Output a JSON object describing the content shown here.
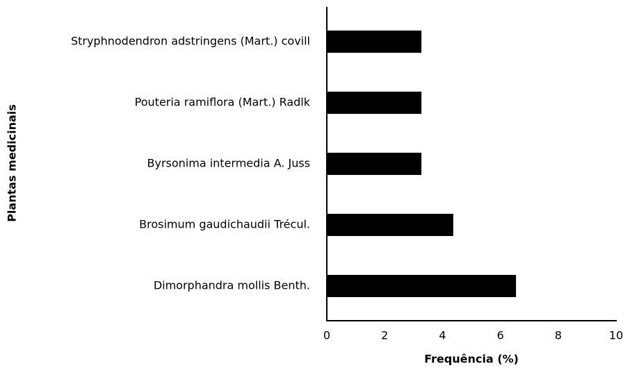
{
  "chart_data": {
    "type": "bar",
    "orientation": "horizontal",
    "categories": [
      "Stryphnodendron adstringens (Mart.) covill",
      "Pouteria ramiflora (Mart.) Radlk",
      "Byrsonima intermedia A. Juss",
      "Brosimum gaudichaudii Trécul.",
      "Dimorphandra mollis Benth."
    ],
    "values": [
      3.27,
      3.27,
      3.27,
      4.37,
      6.54
    ],
    "color": "#000000",
    "xlabel": "Frequência (%)",
    "ylabel": "Plantas medicinais",
    "xlim": [
      0,
      10
    ],
    "xticks": [
      0,
      2,
      4,
      6,
      8,
      10
    ],
    "grid": false
  }
}
